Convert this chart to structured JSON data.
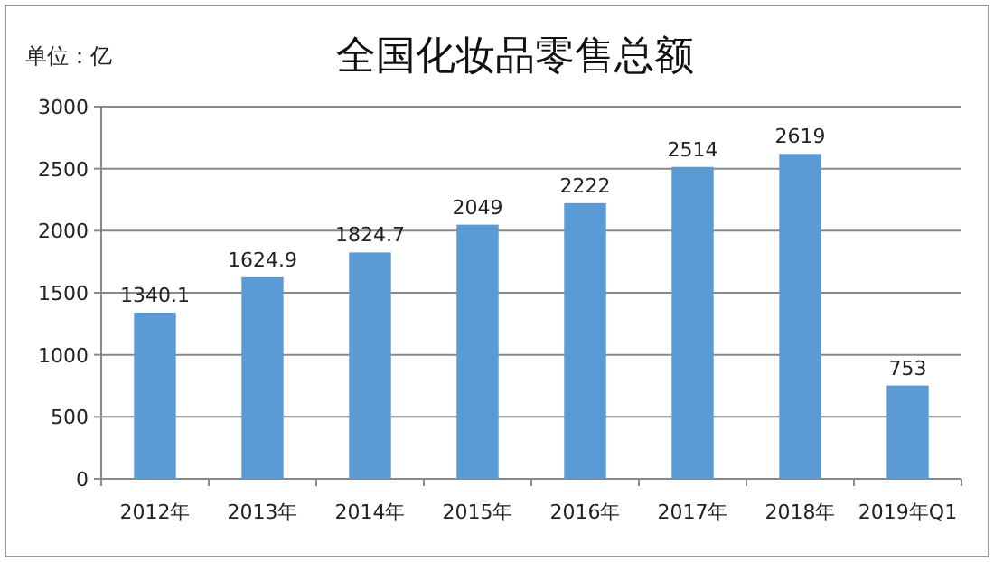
{
  "chart_data": {
    "type": "bar",
    "title": "全国化妆品零售总额",
    "ylabel": "单位：亿",
    "categories": [
      "2012年",
      "2013年",
      "2014年",
      "2015年",
      "2016年",
      "2017年",
      "2018年",
      "2019年Q1"
    ],
    "values": [
      1340.1,
      1624.9,
      1824.7,
      2049,
      2222,
      2514,
      2619,
      753
    ],
    "color": "#5b9bd5",
    "ylim": [
      0,
      3000
    ],
    "yticks": [
      0,
      500,
      1000,
      1500,
      2000,
      2500,
      3000
    ],
    "grid": "y",
    "data_labels": true
  }
}
